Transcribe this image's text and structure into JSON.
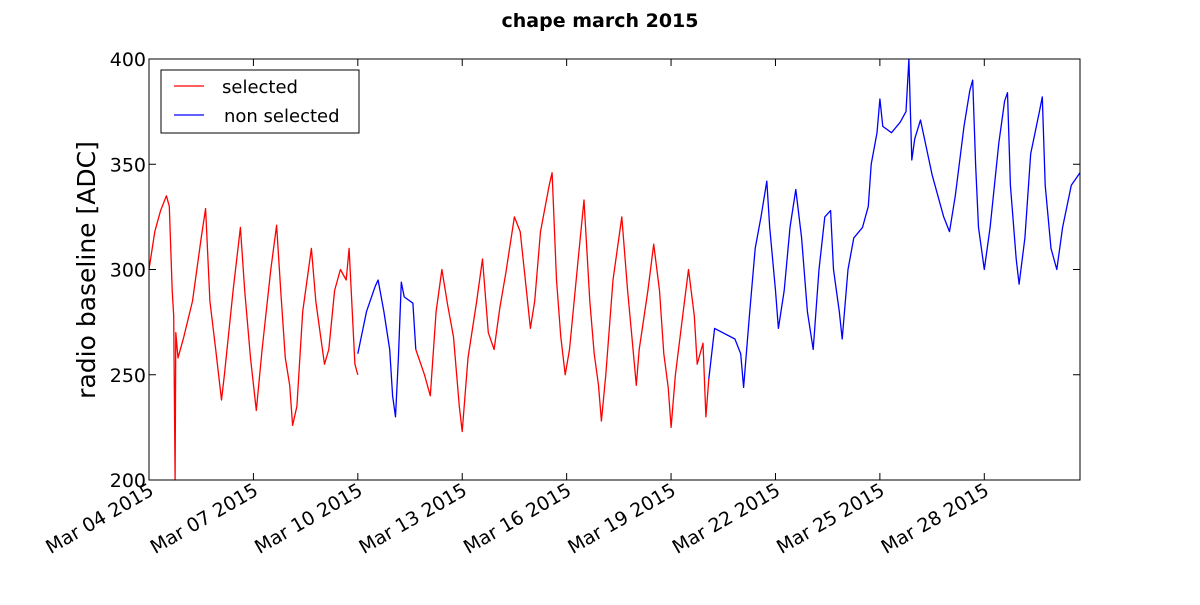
{
  "chart_data": {
    "type": "line",
    "title": "chape march 2015",
    "xlabel": "",
    "ylabel": "radio baseline [ADC]",
    "xlim": [
      "2015-03-04",
      "2015-03-30 18:00"
    ],
    "ylim": [
      200,
      400
    ],
    "yticks": [
      200,
      250,
      300,
      350,
      400
    ],
    "xticks": [
      {
        "date": "2015-03-04",
        "label": "Mar 04 2015"
      },
      {
        "date": "2015-03-07",
        "label": "Mar 07 2015"
      },
      {
        "date": "2015-03-10",
        "label": "Mar 10 2015"
      },
      {
        "date": "2015-03-13",
        "label": "Mar 13 2015"
      },
      {
        "date": "2015-03-16",
        "label": "Mar 16 2015"
      },
      {
        "date": "2015-03-19",
        "label": "Mar 19 2015"
      },
      {
        "date": "2015-03-22",
        "label": "Mar 22 2015"
      },
      {
        "date": "2015-03-25",
        "label": "Mar 25 2015"
      },
      {
        "date": "2015-03-28",
        "label": "Mar 28 2015"
      }
    ],
    "grid": false,
    "legend_position": "top-left",
    "series": [
      {
        "name": "selected",
        "color": "#ff0000",
        "segments": [
          [
            [
              "2015-03-04 00:00",
              300
            ],
            [
              "2015-03-04 04:00",
              318
            ],
            [
              "2015-03-04 08:00",
              328
            ],
            [
              "2015-03-04 12:00",
              335
            ],
            [
              "2015-03-04 14:00",
              330
            ],
            [
              "2015-03-04 16:00",
              290
            ],
            [
              "2015-03-04 17:00",
              278
            ],
            [
              "2015-03-04 18:00",
              200
            ],
            [
              "2015-03-04 18:30",
              270
            ],
            [
              "2015-03-04 20:00",
              258
            ],
            [
              "2015-03-05 00:00",
              268
            ],
            [
              "2015-03-05 06:00",
              285
            ],
            [
              "2015-03-05 12:00",
              315
            ],
            [
              "2015-03-05 15:00",
              329
            ],
            [
              "2015-03-05 18:00",
              285
            ],
            [
              "2015-03-05 22:00",
              262
            ],
            [
              "2015-03-06 02:00",
              238
            ],
            [
              "2015-03-06 04:00",
              250
            ],
            [
              "2015-03-06 10:00",
              290
            ],
            [
              "2015-03-06 15:00",
              320
            ],
            [
              "2015-03-06 18:00",
              290
            ],
            [
              "2015-03-06 22:00",
              258
            ],
            [
              "2015-03-07 02:00",
              233
            ],
            [
              "2015-03-07 06:00",
              262
            ],
            [
              "2015-03-07 12:00",
              300
            ],
            [
              "2015-03-07 16:00",
              321
            ],
            [
              "2015-03-07 19:00",
              288
            ],
            [
              "2015-03-07 22:00",
              258
            ],
            [
              "2015-03-08 01:00",
              245
            ],
            [
              "2015-03-08 03:00",
              226
            ],
            [
              "2015-03-08 06:00",
              235
            ],
            [
              "2015-03-08 10:00",
              280
            ],
            [
              "2015-03-08 14:00",
              300
            ],
            [
              "2015-03-08 16:00",
              310
            ],
            [
              "2015-03-08 19:00",
              285
            ],
            [
              "2015-03-08 22:00",
              270
            ],
            [
              "2015-03-09 01:00",
              255
            ],
            [
              "2015-03-09 04:00",
              262
            ],
            [
              "2015-03-09 08:00",
              290
            ],
            [
              "2015-03-09 12:00",
              300
            ],
            [
              "2015-03-09 16:00",
              295
            ],
            [
              "2015-03-09 18:00",
              310
            ],
            [
              "2015-03-09 22:00",
              255
            ],
            [
              "2015-03-10 00:00",
              250
            ]
          ],
          [
            [
              "2015-03-11 16:00",
              262
            ],
            [
              "2015-03-11 22:00",
              250
            ],
            [
              "2015-03-12 02:00",
              240
            ],
            [
              "2015-03-12 06:00",
              280
            ],
            [
              "2015-03-12 10:00",
              300
            ],
            [
              "2015-03-12 14:00",
              283
            ],
            [
              "2015-03-12 18:00",
              268
            ],
            [
              "2015-03-12 22:00",
              235
            ],
            [
              "2015-03-13 00:00",
              223
            ],
            [
              "2015-03-13 04:00",
              258
            ],
            [
              "2015-03-13 10:00",
              285
            ],
            [
              "2015-03-13 14:00",
              305
            ],
            [
              "2015-03-13 18:00",
              270
            ],
            [
              "2015-03-13 22:00",
              262
            ],
            [
              "2015-03-14 02:00",
              282
            ],
            [
              "2015-03-14 06:00",
              298
            ],
            [
              "2015-03-14 12:00",
              325
            ],
            [
              "2015-03-14 16:00",
              318
            ],
            [
              "2015-03-14 20:00",
              292
            ],
            [
              "2015-03-14 23:00",
              272
            ],
            [
              "2015-03-15 02:00",
              285
            ],
            [
              "2015-03-15 06:00",
              318
            ],
            [
              "2015-03-15 12:00",
              340
            ],
            [
              "2015-03-15 14:00",
              346
            ],
            [
              "2015-03-15 17:00",
              295
            ],
            [
              "2015-03-15 20:00",
              268
            ],
            [
              "2015-03-15 23:00",
              250
            ],
            [
              "2015-03-16 02:00",
              262
            ],
            [
              "2015-03-16 08:00",
              305
            ],
            [
              "2015-03-16 12:00",
              333
            ],
            [
              "2015-03-16 16:00",
              285
            ],
            [
              "2015-03-16 19:00",
              260
            ],
            [
              "2015-03-16 22:00",
              245
            ],
            [
              "2015-03-17 00:00",
              228
            ],
            [
              "2015-03-17 03:00",
              250
            ],
            [
              "2015-03-17 08:00",
              295
            ],
            [
              "2015-03-17 14:00",
              325
            ],
            [
              "2015-03-17 18:00",
              290
            ],
            [
              "2015-03-17 21:00",
              268
            ],
            [
              "2015-03-18 00:00",
              245
            ],
            [
              "2015-03-18 02:00",
              262
            ],
            [
              "2015-03-18 08:00",
              290
            ],
            [
              "2015-03-18 12:00",
              312
            ],
            [
              "2015-03-18 16:00",
              290
            ],
            [
              "2015-03-18 19:00",
              260
            ],
            [
              "2015-03-18 22:00",
              244
            ],
            [
              "2015-03-19 00:00",
              225
            ],
            [
              "2015-03-19 03:00",
              250
            ],
            [
              "2015-03-19 08:00",
              278
            ],
            [
              "2015-03-19 12:00",
              300
            ],
            [
              "2015-03-19 16:00",
              278
            ],
            [
              "2015-03-19 18:00",
              255
            ],
            [
              "2015-03-19 22:00",
              265
            ],
            [
              "2015-03-20 00:00",
              230
            ],
            [
              "2015-03-20 02:00",
              248
            ]
          ]
        ]
      },
      {
        "name": "non selected",
        "color": "#0000ff",
        "segments": [
          [
            [
              "2015-03-10 00:00",
              260
            ],
            [
              "2015-03-10 06:00",
              280
            ],
            [
              "2015-03-10 12:00",
              292
            ],
            [
              "2015-03-10 14:00",
              295
            ],
            [
              "2015-03-10 18:00",
              280
            ],
            [
              "2015-03-10 22:00",
              262
            ],
            [
              "2015-03-11 00:00",
              240
            ],
            [
              "2015-03-11 02:00",
              230
            ],
            [
              "2015-03-11 04:00",
              258
            ],
            [
              "2015-03-11 06:00",
              294
            ],
            [
              "2015-03-11 08:00",
              287
            ],
            [
              "2015-03-11 14:00",
              284
            ],
            [
              "2015-03-11 16:00",
              262
            ]
          ],
          [
            [
              "2015-03-20 02:00",
              248
            ],
            [
              "2015-03-20 06:00",
              272
            ],
            [
              "2015-03-20 20:00",
              267
            ],
            [
              "2015-03-21 00:00",
              260
            ],
            [
              "2015-03-21 02:00",
              244
            ],
            [
              "2015-03-21 06:00",
              278
            ],
            [
              "2015-03-21 10:00",
              310
            ],
            [
              "2015-03-21 14:00",
              325
            ],
            [
              "2015-03-21 18:00",
              342
            ],
            [
              "2015-03-21 20:00",
              320
            ],
            [
              "2015-03-22 00:00",
              290
            ],
            [
              "2015-03-22 02:00",
              272
            ],
            [
              "2015-03-22 06:00",
              290
            ],
            [
              "2015-03-22 10:00",
              320
            ],
            [
              "2015-03-22 14:00",
              338
            ],
            [
              "2015-03-22 18:00",
              315
            ],
            [
              "2015-03-22 22:00",
              280
            ],
            [
              "2015-03-23 02:00",
              262
            ],
            [
              "2015-03-23 06:00",
              300
            ],
            [
              "2015-03-23 10:00",
              325
            ],
            [
              "2015-03-23 14:00",
              328
            ],
            [
              "2015-03-23 16:00",
              300
            ],
            [
              "2015-03-23 20:00",
              280
            ],
            [
              "2015-03-23 22:00",
              267
            ],
            [
              "2015-03-24 02:00",
              300
            ],
            [
              "2015-03-24 06:00",
              315
            ],
            [
              "2015-03-24 12:00",
              320
            ],
            [
              "2015-03-24 16:00",
              330
            ],
            [
              "2015-03-24 18:00",
              350
            ],
            [
              "2015-03-24 22:00",
              365
            ],
            [
              "2015-03-25 00:00",
              381
            ],
            [
              "2015-03-25 02:00",
              368
            ],
            [
              "2015-03-25 08:00",
              365
            ],
            [
              "2015-03-25 14:00",
              370
            ],
            [
              "2015-03-25 18:00",
              375
            ],
            [
              "2015-03-25 20:00",
              400
            ],
            [
              "2015-03-25 22:00",
              352
            ],
            [
              "2015-03-26 00:00",
              362
            ],
            [
              "2015-03-26 04:00",
              371
            ],
            [
              "2015-03-26 12:00",
              345
            ],
            [
              "2015-03-26 20:00",
              325
            ],
            [
              "2015-03-27 00:00",
              318
            ],
            [
              "2015-03-27 04:00",
              335
            ],
            [
              "2015-03-27 10:00",
              368
            ],
            [
              "2015-03-27 14:00",
              385
            ],
            [
              "2015-03-27 16:00",
              390
            ],
            [
              "2015-03-27 18:00",
              350
            ],
            [
              "2015-03-27 20:00",
              320
            ],
            [
              "2015-03-28 00:00",
              300
            ],
            [
              "2015-03-28 04:00",
              320
            ],
            [
              "2015-03-28 10:00",
              360
            ],
            [
              "2015-03-28 14:00",
              380
            ],
            [
              "2015-03-28 16:00",
              384
            ],
            [
              "2015-03-28 18:00",
              340
            ],
            [
              "2015-03-28 22:00",
              305
            ],
            [
              "2015-03-29 00:00",
              293
            ],
            [
              "2015-03-29 04:00",
              315
            ],
            [
              "2015-03-29 08:00",
              355
            ],
            [
              "2015-03-29 14:00",
              375
            ],
            [
              "2015-03-29 16:00",
              382
            ],
            [
              "2015-03-29 18:00",
              340
            ],
            [
              "2015-03-29 22:00",
              310
            ],
            [
              "2015-03-30 02:00",
              300
            ],
            [
              "2015-03-30 06:00",
              320
            ],
            [
              "2015-03-30 12:00",
              340
            ],
            [
              "2015-03-30 18:00",
              346
            ]
          ]
        ]
      }
    ]
  }
}
